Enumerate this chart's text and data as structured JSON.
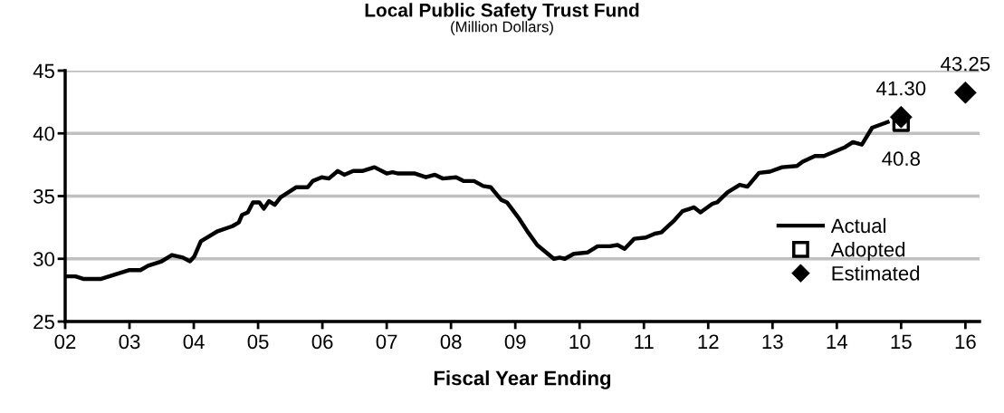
{
  "chart_data": {
    "type": "line",
    "title": "Local Public Safety Trust Fund",
    "subtitle": "(Million Dollars)",
    "xlabel": "Fiscal Year Ending",
    "xlim": [
      2,
      16.22
    ],
    "xticks": [
      {
        "value": 2,
        "label": "02"
      },
      {
        "value": 3,
        "label": "03"
      },
      {
        "value": 4,
        "label": "04"
      },
      {
        "value": 5,
        "label": "05"
      },
      {
        "value": 6,
        "label": "06"
      },
      {
        "value": 7,
        "label": "07"
      },
      {
        "value": 8,
        "label": "08"
      },
      {
        "value": 9,
        "label": "09"
      },
      {
        "value": 10,
        "label": "10"
      },
      {
        "value": 11,
        "label": "11"
      },
      {
        "value": 12,
        "label": "12"
      },
      {
        "value": 13,
        "label": "13"
      },
      {
        "value": 14,
        "label": "14"
      },
      {
        "value": 15,
        "label": "15"
      },
      {
        "value": 16,
        "label": "16"
      }
    ],
    "ylim": [
      25,
      45
    ],
    "yticks": [
      25,
      30,
      35,
      40,
      45
    ],
    "grid": "y",
    "legend": "right",
    "series": [
      {
        "name": "Actual",
        "color": "#000000",
        "marker": "none",
        "line_style": "solid",
        "x": [
          2.0,
          2.16,
          2.28,
          2.56,
          3.0,
          3.17,
          3.29,
          3.5,
          3.66,
          3.83,
          3.94,
          4.01,
          4.11,
          4.37,
          4.6,
          4.7,
          4.75,
          4.84,
          4.92,
          5.02,
          5.09,
          5.17,
          5.26,
          5.35,
          5.59,
          5.77,
          5.85,
          5.99,
          6.1,
          6.24,
          6.34,
          6.48,
          6.62,
          6.81,
          7.0,
          7.09,
          7.18,
          7.44,
          7.61,
          7.75,
          7.87,
          8.08,
          8.2,
          8.36,
          8.5,
          8.62,
          8.78,
          8.87,
          9.06,
          9.2,
          9.34,
          9.6,
          9.69,
          9.77,
          9.91,
          10.12,
          10.28,
          10.47,
          10.59,
          10.7,
          10.85,
          11.03,
          11.17,
          11.27,
          11.48,
          11.6,
          11.78,
          11.88,
          12.07,
          12.14,
          12.3,
          12.49,
          12.61,
          12.79,
          12.96,
          13.15,
          13.38,
          13.47,
          13.66,
          13.8,
          14.13,
          14.25,
          14.39,
          14.55,
          14.79
        ],
        "values": [
          28.6,
          28.6,
          28.4,
          28.4,
          29.1,
          29.1,
          29.45,
          29.8,
          30.3,
          30.1,
          29.8,
          30.2,
          31.4,
          32.2,
          32.6,
          32.9,
          33.5,
          33.7,
          34.5,
          34.5,
          34.0,
          34.6,
          34.3,
          34.9,
          35.7,
          35.7,
          36.2,
          36.5,
          36.4,
          37.0,
          36.7,
          37.0,
          37.0,
          37.3,
          36.8,
          36.9,
          36.8,
          36.8,
          36.5,
          36.7,
          36.4,
          36.5,
          36.2,
          36.2,
          35.8,
          35.7,
          34.7,
          34.5,
          33.2,
          32.1,
          31.1,
          30.0,
          30.1,
          30.0,
          30.4,
          30.5,
          31.0,
          31.0,
          31.1,
          30.8,
          31.6,
          31.7,
          32.0,
          32.1,
          33.1,
          33.8,
          34.1,
          33.7,
          34.4,
          34.5,
          35.3,
          35.9,
          35.75,
          36.85,
          36.95,
          37.3,
          37.4,
          37.75,
          38.2,
          38.2,
          38.9,
          39.3,
          39.1,
          40.45,
          40.9
        ]
      },
      {
        "name": "Adopted",
        "type": "scatter",
        "color": "#000000",
        "marker": "square",
        "x": [
          15
        ],
        "values": [
          40.8
        ],
        "value_labels": [
          "40.8"
        ]
      },
      {
        "name": "Estimated",
        "type": "scatter",
        "color": "#000000",
        "marker": "diamond",
        "x": [
          15,
          16
        ],
        "values": [
          41.3,
          43.25
        ],
        "value_labels": [
          "41.30",
          "43.25"
        ]
      }
    ]
  }
}
